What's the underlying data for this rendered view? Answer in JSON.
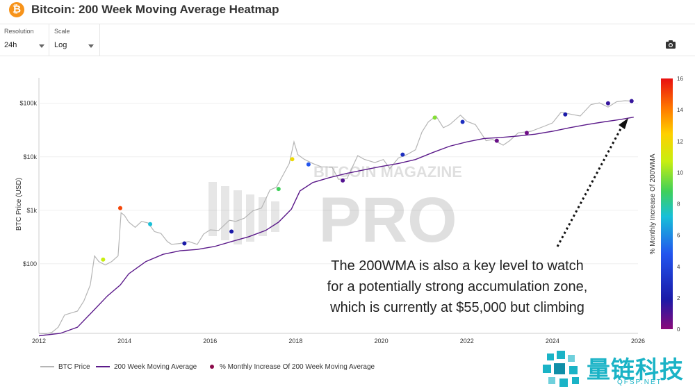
{
  "header": {
    "title": "Bitcoin: 200 Week Moving Average Heatmap",
    "coin_symbol": "₿"
  },
  "controls": {
    "resolution": {
      "label": "Resolution",
      "value": "24h"
    },
    "scale": {
      "label": "Scale",
      "value": "Log"
    }
  },
  "annotation": {
    "line1": "The 200WMA is also a key level to watch",
    "line2": "for a potentially strong accumulation zone,",
    "line3": "which is currently at $55,000 but climbing"
  },
  "watermark": {
    "line1": "BITCOIN MAGAZINE",
    "line2": "PRO",
    "brand_cn": "量链科技",
    "brand_url": "QFSP.NET"
  },
  "colors": {
    "accent": "#f7931a",
    "wma_line": "#5b1a8a",
    "btc_line": "#b5b5b5",
    "teal": "#1ab3c6"
  },
  "chart_data": {
    "type": "line",
    "title": "Bitcoin: 200 Week Moving Average Heatmap",
    "xlabel": "",
    "ylabel": "BTC Price (USD)",
    "y_scale": "log",
    "ylim": [
      5,
      300000
    ],
    "xlim": [
      2012,
      2026
    ],
    "x_ticks": [
      "2012",
      "2014",
      "2016",
      "2018",
      "2020",
      "2022",
      "2024",
      "2026"
    ],
    "y_ticks": [
      {
        "value": 100,
        "label": "$100"
      },
      {
        "value": 1000,
        "label": "$1k"
      },
      {
        "value": 10000,
        "label": "$10k"
      },
      {
        "value": 100000,
        "label": "$100k"
      }
    ],
    "colorbar": {
      "label": "% Monthly Increase Of 200WMA",
      "min": 0,
      "max": 16,
      "ticks": [
        0,
        2,
        4,
        6,
        8,
        10,
        12,
        14,
        16
      ]
    },
    "legend": [
      "BTC Price",
      "200 Week Moving Average",
      "% Monthly Increase Of 200 Week Moving Average"
    ],
    "series": [
      {
        "name": "BTC Price",
        "x": [
          2012.0,
          2012.15,
          2012.3,
          2012.45,
          2012.6,
          2012.75,
          2012.9,
          2013.05,
          2013.2,
          2013.3,
          2013.4,
          2013.55,
          2013.7,
          2013.85,
          2013.92,
          2014.0,
          2014.1,
          2014.25,
          2014.4,
          2014.55,
          2014.7,
          2014.85,
          2015.0,
          2015.1,
          2015.3,
          2015.5,
          2015.7,
          2015.85,
          2016.0,
          2016.2,
          2016.45,
          2016.6,
          2016.8,
          2017.0,
          2017.2,
          2017.4,
          2017.55,
          2017.7,
          2017.85,
          2017.96,
          2018.05,
          2018.2,
          2018.4,
          2018.6,
          2018.85,
          2019.0,
          2019.2,
          2019.45,
          2019.6,
          2019.85,
          2020.05,
          2020.2,
          2020.4,
          2020.6,
          2020.8,
          2020.95,
          2021.1,
          2021.28,
          2021.45,
          2021.6,
          2021.85,
          2022.0,
          2022.2,
          2022.45,
          2022.6,
          2022.85,
          2023.0,
          2023.2,
          2023.5,
          2023.8,
          2024.0,
          2024.2,
          2024.45,
          2024.65,
          2024.9,
          2025.1,
          2025.3,
          2025.5,
          2025.7,
          2025.85
        ],
        "y": [
          5,
          4.9,
          5.2,
          6.5,
          11,
          12,
          13,
          20,
          40,
          140,
          110,
          95,
          110,
          140,
          900,
          800,
          600,
          480,
          620,
          580,
          400,
          370,
          260,
          230,
          240,
          260,
          230,
          360,
          430,
          420,
          650,
          620,
          710,
          980,
          1100,
          2400,
          2700,
          4500,
          7500,
          19000,
          11000,
          9000,
          7500,
          6500,
          6400,
          3800,
          3900,
          10500,
          9000,
          7800,
          8900,
          6000,
          9500,
          11000,
          13500,
          29000,
          45000,
          58000,
          35000,
          40000,
          60000,
          46000,
          40000,
          20000,
          21000,
          16500,
          20000,
          28000,
          30000,
          37000,
          43000,
          68000,
          62000,
          58000,
          95000,
          102000,
          85000,
          107000,
          112000,
          110000
        ]
      },
      {
        "name": "200 Week Moving Average",
        "x": [
          2012.0,
          2012.5,
          2012.9,
          2013.3,
          2013.6,
          2013.9,
          2014.1,
          2014.5,
          2014.9,
          2015.3,
          2015.7,
          2016.1,
          2016.5,
          2016.9,
          2017.3,
          2017.6,
          2017.9,
          2018.1,
          2018.4,
          2018.8,
          2019.2,
          2019.6,
          2020.0,
          2020.4,
          2020.8,
          2021.2,
          2021.6,
          2022.0,
          2022.4,
          2022.8,
          2023.2,
          2023.6,
          2024.0,
          2024.4,
          2024.8,
          2025.2,
          2025.6,
          2025.9
        ],
        "y": [
          4.5,
          5,
          6.5,
          14,
          25,
          40,
          65,
          110,
          150,
          175,
          185,
          210,
          260,
          320,
          420,
          600,
          1050,
          2300,
          3300,
          4100,
          4900,
          5700,
          6600,
          7500,
          8900,
          12000,
          15800,
          19000,
          22000,
          23000,
          24500,
          26500,
          30000,
          35000,
          40000,
          45000,
          50000,
          55000
        ]
      },
      {
        "name": "% Monthly Increase Of 200 Week Moving Average",
        "x": [
          2013.5,
          2013.9,
          2014.6,
          2015.4,
          2016.5,
          2017.6,
          2017.92,
          2018.3,
          2019.1,
          2020.5,
          2021.25,
          2021.9,
          2022.7,
          2023.4,
          2024.3,
          2025.3,
          2025.85
        ],
        "y": [
          120,
          1100,
          550,
          240,
          400,
          2500,
          9000,
          7200,
          3600,
          11000,
          54000,
          45000,
          20000,
          28000,
          62000,
          100000,
          110000
        ],
        "pct": [
          11,
          15,
          7,
          2,
          2,
          9,
          12,
          5,
          1,
          3,
          10,
          3,
          0.6,
          0.5,
          2,
          1.5,
          1.5
        ]
      }
    ]
  }
}
